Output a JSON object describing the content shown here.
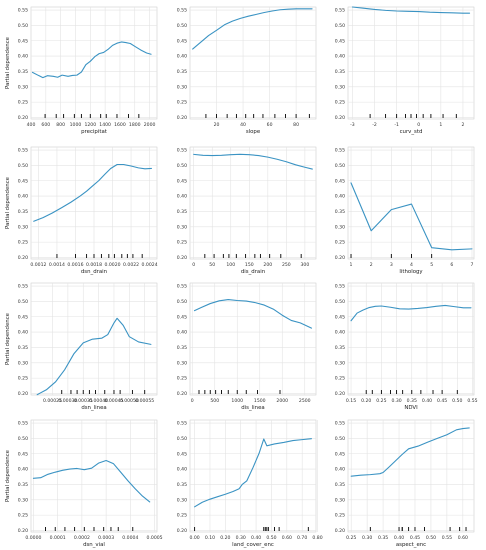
{
  "figure": {
    "line_color": "#3a93c3",
    "rug_color": "#000000",
    "grid": true
  },
  "chart_data": [
    {
      "type": "line",
      "title": "",
      "xlabel": "precipitat",
      "ylabel": "Partial dependence",
      "xlim": [
        400,
        2100
      ],
      "ylim": [
        0.195,
        0.56
      ],
      "xticks": [
        400,
        600,
        800,
        1000,
        1200,
        1400,
        1600,
        1800,
        2000
      ],
      "yticks": [
        0.2,
        0.25,
        0.3,
        0.35,
        0.4,
        0.45,
        0.5,
        0.55
      ],
      "x": [
        420,
        500,
        560,
        620,
        700,
        760,
        820,
        900,
        960,
        1020,
        1080,
        1140,
        1200,
        1260,
        1320,
        1380,
        1440,
        1500,
        1560,
        1620,
        1680,
        1740,
        1800,
        1880,
        1960,
        2020
      ],
      "y": [
        0.347,
        0.337,
        0.33,
        0.336,
        0.334,
        0.331,
        0.338,
        0.334,
        0.337,
        0.338,
        0.348,
        0.372,
        0.383,
        0.398,
        0.408,
        0.412,
        0.422,
        0.435,
        0.442,
        0.446,
        0.444,
        0.441,
        0.432,
        0.42,
        0.41,
        0.406
      ],
      "rug": [
        590,
        740,
        840,
        985,
        1080,
        1200,
        1340,
        1415,
        1560,
        1715,
        1855
      ]
    },
    {
      "type": "line",
      "title": "",
      "xlabel": "slope",
      "ylabel": "",
      "xlim": [
        0,
        95
      ],
      "ylim": [
        0.195,
        0.56
      ],
      "xticks": [
        20,
        40,
        60,
        80
      ],
      "yticks": [
        0.2,
        0.25,
        0.3,
        0.35,
        0.4,
        0.45,
        0.5,
        0.55
      ],
      "x": [
        2,
        8,
        14,
        20,
        26,
        32,
        38,
        44,
        50,
        56,
        62,
        68,
        74,
        80,
        86,
        92
      ],
      "y": [
        0.423,
        0.445,
        0.467,
        0.484,
        0.502,
        0.514,
        0.523,
        0.53,
        0.536,
        0.542,
        0.547,
        0.551,
        0.553,
        0.554,
        0.554,
        0.554
      ],
      "rug": [
        12,
        20,
        28,
        35,
        42,
        48,
        55,
        64,
        72,
        80,
        90
      ]
    },
    {
      "type": "line",
      "title": "",
      "xlabel": "curv_std",
      "ylabel": "",
      "xlim": [
        -3.2,
        2.5
      ],
      "ylim": [
        0.195,
        0.56
      ],
      "xticks": [
        -3,
        -2,
        -1,
        0,
        1,
        2
      ],
      "yticks": [
        0.2,
        0.25,
        0.3,
        0.35,
        0.4,
        0.45,
        0.5,
        0.55
      ],
      "x": [
        -3.0,
        -2.5,
        -2.0,
        -1.5,
        -1.0,
        -0.5,
        0.0,
        0.5,
        1.0,
        1.5,
        2.0,
        2.3
      ],
      "y": [
        0.56,
        0.556,
        0.552,
        0.549,
        0.547,
        0.546,
        0.545,
        0.543,
        0.542,
        0.541,
        0.54,
        0.54
      ],
      "rug": [
        -2.2,
        -1.5,
        -1.0,
        -0.6,
        -0.35,
        -0.1,
        0.2,
        0.55,
        1.1,
        1.7
      ]
    },
    {
      "type": "line",
      "title": "",
      "xlabel": "dsn_drain",
      "ylabel": "Partial dependence",
      "xlim": [
        0.00112,
        0.00248
      ],
      "ylim": [
        0.195,
        0.56
      ],
      "xticks": [
        0.0012,
        0.0014,
        0.0016,
        0.0018,
        0.002,
        0.0022,
        0.0024
      ],
      "yticks": [
        0.2,
        0.25,
        0.3,
        0.35,
        0.4,
        0.45,
        0.5,
        0.55
      ],
      "x": [
        0.00115,
        0.00125,
        0.00135,
        0.00145,
        0.00155,
        0.00165,
        0.00172,
        0.00178,
        0.00185,
        0.00192,
        0.00198,
        0.00205,
        0.00212,
        0.0022,
        0.00228,
        0.00235,
        0.00242
      ],
      "y": [
        0.318,
        0.33,
        0.345,
        0.362,
        0.38,
        0.4,
        0.416,
        0.432,
        0.45,
        0.472,
        0.49,
        0.503,
        0.503,
        0.498,
        0.492,
        0.489,
        0.49
      ],
      "rug": [
        0.0014,
        0.0016,
        0.00172,
        0.0018,
        0.00188,
        0.00196,
        0.00202,
        0.0021,
        0.00216,
        0.00222,
        0.00232
      ]
    },
    {
      "type": "line",
      "title": "",
      "xlabel": "dis_drain",
      "ylabel": "",
      "xlim": [
        -10,
        330
      ],
      "ylim": [
        0.195,
        0.56
      ],
      "xticks": [
        0,
        50,
        100,
        150,
        200,
        250,
        300
      ],
      "yticks": [
        0.2,
        0.25,
        0.3,
        0.35,
        0.4,
        0.45,
        0.5,
        0.55
      ],
      "x": [
        0,
        25,
        50,
        75,
        100,
        125,
        150,
        175,
        200,
        225,
        250,
        275,
        300,
        320
      ],
      "y": [
        0.536,
        0.533,
        0.532,
        0.533,
        0.535,
        0.536,
        0.535,
        0.532,
        0.527,
        0.52,
        0.512,
        0.502,
        0.494,
        0.488
      ],
      "rug": [
        30,
        55,
        80,
        95,
        115,
        140,
        165,
        180,
        205,
        235,
        290
      ]
    },
    {
      "type": "line",
      "title": "",
      "xlabel": "lithology",
      "ylabel": "",
      "xlim": [
        0.85,
        7.1
      ],
      "ylim": [
        0.195,
        0.56
      ],
      "xticks": [
        1,
        2,
        3,
        4,
        5,
        6,
        7
      ],
      "yticks": [
        0.2,
        0.25,
        0.3,
        0.35,
        0.4,
        0.45,
        0.5,
        0.55
      ],
      "x": [
        1,
        2,
        3,
        4,
        5,
        6,
        7
      ],
      "y": [
        0.443,
        0.287,
        0.356,
        0.374,
        0.232,
        0.225,
        0.228
      ],
      "rug": [
        1,
        3,
        4,
        5
      ]
    },
    {
      "type": "line",
      "title": "",
      "xlabel": "dsn_linea",
      "ylabel": "Partial dependence",
      "xlim": [
        0.00018,
        0.00059
      ],
      "ylim": [
        0.195,
        0.56
      ],
      "xticks": [
        0.00025,
        0.0003,
        0.00035,
        0.0004,
        0.00045,
        0.0005,
        0.00055
      ],
      "yticks": [
        0.2,
        0.25,
        0.3,
        0.35,
        0.4,
        0.45,
        0.5,
        0.55
      ],
      "x": [
        0.0002,
        0.00023,
        0.00026,
        0.00029,
        0.00032,
        0.00035,
        0.00038,
        0.00041,
        0.00043,
        0.00045,
        0.00046,
        0.00048,
        0.0005,
        0.00053,
        0.00057
      ],
      "y": [
        0.196,
        0.212,
        0.238,
        0.278,
        0.33,
        0.365,
        0.377,
        0.38,
        0.392,
        0.43,
        0.445,
        0.422,
        0.385,
        0.368,
        0.36
      ],
      "rug": [
        0.00028,
        0.00031,
        0.00033,
        0.00035,
        0.00037,
        0.00039,
        0.00042,
        0.00045,
        0.00047,
        0.00051,
        0.00055
      ]
    },
    {
      "type": "line",
      "title": "",
      "xlabel": "dis_linea",
      "ylabel": "",
      "xlim": [
        -50,
        2750
      ],
      "ylim": [
        0.195,
        0.56
      ],
      "xticks": [
        0,
        500,
        1000,
        1500,
        2000,
        2500
      ],
      "yticks": [
        0.2,
        0.25,
        0.3,
        0.35,
        0.4,
        0.45,
        0.5,
        0.55
      ],
      "x": [
        50,
        200,
        400,
        600,
        800,
        1000,
        1200,
        1400,
        1600,
        1800,
        2000,
        2200,
        2400,
        2650
      ],
      "y": [
        0.47,
        0.48,
        0.493,
        0.502,
        0.506,
        0.503,
        0.501,
        0.496,
        0.488,
        0.475,
        0.455,
        0.438,
        0.43,
        0.413
      ],
      "rug": [
        150,
        280,
        400,
        520,
        650,
        800,
        1000,
        1200,
        1450,
        1950
      ]
    },
    {
      "type": "line",
      "title": "",
      "xlabel": "NDVI",
      "ylabel": "",
      "xlim": [
        0.14,
        0.555
      ],
      "ylim": [
        0.195,
        0.56
      ],
      "xticks": [
        0.15,
        0.2,
        0.25,
        0.3,
        0.35,
        0.4,
        0.45,
        0.5,
        0.55
      ],
      "yticks": [
        0.2,
        0.25,
        0.3,
        0.35,
        0.4,
        0.45,
        0.5,
        0.55
      ],
      "x": [
        0.15,
        0.17,
        0.19,
        0.21,
        0.23,
        0.25,
        0.28,
        0.31,
        0.34,
        0.37,
        0.4,
        0.43,
        0.46,
        0.49,
        0.52,
        0.545
      ],
      "y": [
        0.437,
        0.462,
        0.472,
        0.48,
        0.484,
        0.485,
        0.481,
        0.476,
        0.475,
        0.477,
        0.48,
        0.484,
        0.487,
        0.483,
        0.479,
        0.479
      ],
      "rug": [
        0.2,
        0.22,
        0.25,
        0.28,
        0.3,
        0.32,
        0.35,
        0.38,
        0.42,
        0.45,
        0.5
      ]
    },
    {
      "type": "line",
      "title": "",
      "xlabel": "dsn_vial",
      "ylabel": "Partial dependence",
      "xlim": [
        -1e-05,
        0.00051
      ],
      "ylim": [
        0.195,
        0.56
      ],
      "xticks": [
        0.0,
        0.0001,
        0.0002,
        0.0003,
        0.0004,
        0.0005
      ],
      "yticks": [
        0.2,
        0.25,
        0.3,
        0.35,
        0.4,
        0.45,
        0.5,
        0.55
      ],
      "x": [
        0.0,
        3e-05,
        6e-05,
        9e-05,
        0.00012,
        0.00015,
        0.00018,
        0.00021,
        0.00024,
        0.00027,
        0.0003,
        0.00033,
        0.00036,
        0.00039,
        0.00042,
        0.00045,
        0.00048
      ],
      "y": [
        0.37,
        0.372,
        0.383,
        0.39,
        0.396,
        0.4,
        0.402,
        0.398,
        0.403,
        0.42,
        0.428,
        0.418,
        0.39,
        0.362,
        0.336,
        0.312,
        0.293
      ],
      "rug": [
        5e-05,
        9e-05,
        0.00013,
        0.00017,
        0.00021,
        0.00025,
        0.00029,
        0.00032,
        0.00035,
        0.00041
      ]
    },
    {
      "type": "line",
      "title": "",
      "xlabel": "land_cover_enc",
      "ylabel": "",
      "xlim": [
        -0.03,
        0.79
      ],
      "ylim": [
        0.195,
        0.56
      ],
      "xticks": [
        0.0,
        0.1,
        0.2,
        0.3,
        0.4,
        0.5,
        0.6,
        0.7,
        0.8
      ],
      "yticks": [
        0.2,
        0.25,
        0.3,
        0.35,
        0.4,
        0.45,
        0.5,
        0.55
      ],
      "x": [
        0.0,
        0.05,
        0.1,
        0.15,
        0.2,
        0.25,
        0.29,
        0.31,
        0.34,
        0.38,
        0.42,
        0.45,
        0.47,
        0.52,
        0.58,
        0.64,
        0.7,
        0.76
      ],
      "y": [
        0.277,
        0.292,
        0.302,
        0.31,
        0.318,
        0.327,
        0.336,
        0.35,
        0.362,
        0.405,
        0.452,
        0.498,
        0.476,
        0.482,
        0.487,
        0.493,
        0.496,
        0.499
      ],
      "rug": [
        0.0,
        0.45,
        0.46,
        0.47,
        0.48,
        0.52,
        0.55,
        0.74
      ]
    },
    {
      "type": "line",
      "title": "",
      "xlabel": "aspect_enc",
      "ylabel": "",
      "xlim": [
        0.24,
        0.635
      ],
      "ylim": [
        0.195,
        0.56
      ],
      "xticks": [
        0.25,
        0.3,
        0.35,
        0.4,
        0.45,
        0.5,
        0.55,
        0.6
      ],
      "yticks": [
        0.2,
        0.25,
        0.3,
        0.35,
        0.4,
        0.45,
        0.5,
        0.55
      ],
      "x": [
        0.25,
        0.28,
        0.31,
        0.34,
        0.35,
        0.37,
        0.39,
        0.41,
        0.43,
        0.46,
        0.49,
        0.52,
        0.55,
        0.58,
        0.6,
        0.62
      ],
      "y": [
        0.377,
        0.38,
        0.382,
        0.385,
        0.389,
        0.408,
        0.428,
        0.448,
        0.466,
        0.475,
        0.488,
        0.5,
        0.512,
        0.528,
        0.532,
        0.534
      ],
      "rug": [
        0.31,
        0.4,
        0.41,
        0.41,
        0.43,
        0.45,
        0.48,
        0.56,
        0.59,
        0.61
      ]
    }
  ]
}
